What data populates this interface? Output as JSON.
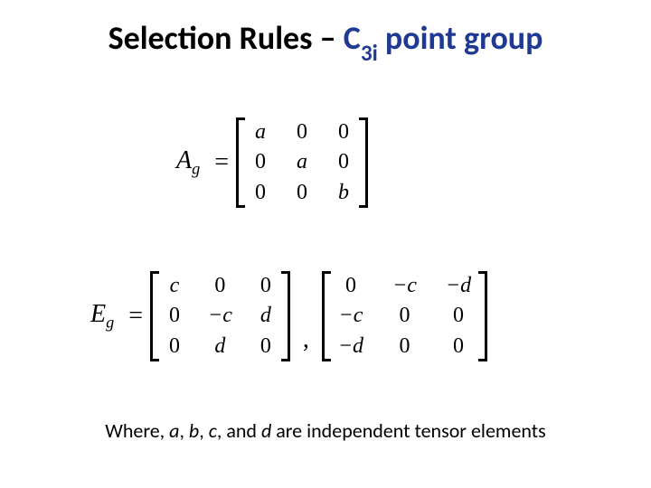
{
  "title": {
    "prefix": "Selection Rules – ",
    "symbol": "C",
    "subscript": "3i",
    "suffix": " point group"
  },
  "matrices": {
    "ag": {
      "lhs": "A",
      "lhs_sub": "g",
      "rows": [
        [
          "a",
          "0",
          "0"
        ],
        [
          "0",
          "a",
          "0"
        ],
        [
          "0",
          "0",
          "b"
        ]
      ]
    },
    "eg": {
      "lhs": "E",
      "lhs_sub": "g",
      "m1_rows": [
        [
          "c",
          "0",
          "0"
        ],
        [
          "0",
          "−c",
          "d"
        ],
        [
          "0",
          "d",
          "0"
        ]
      ],
      "m2_rows": [
        [
          "0",
          "−c",
          "−d"
        ],
        [
          "−c",
          "0",
          "0"
        ],
        [
          "−d",
          "0",
          "0"
        ]
      ]
    }
  },
  "footer": {
    "pre": "Where, ",
    "a": "a",
    "sep1": ", ",
    "b": "b",
    "sep2": ", ",
    "c": "c",
    "sep3": ", and ",
    "d": "d",
    "post": " are independent tensor elements"
  },
  "colors": {
    "title_blue": "#1f3a93",
    "text_black": "#000000",
    "background": "#ffffff"
  }
}
